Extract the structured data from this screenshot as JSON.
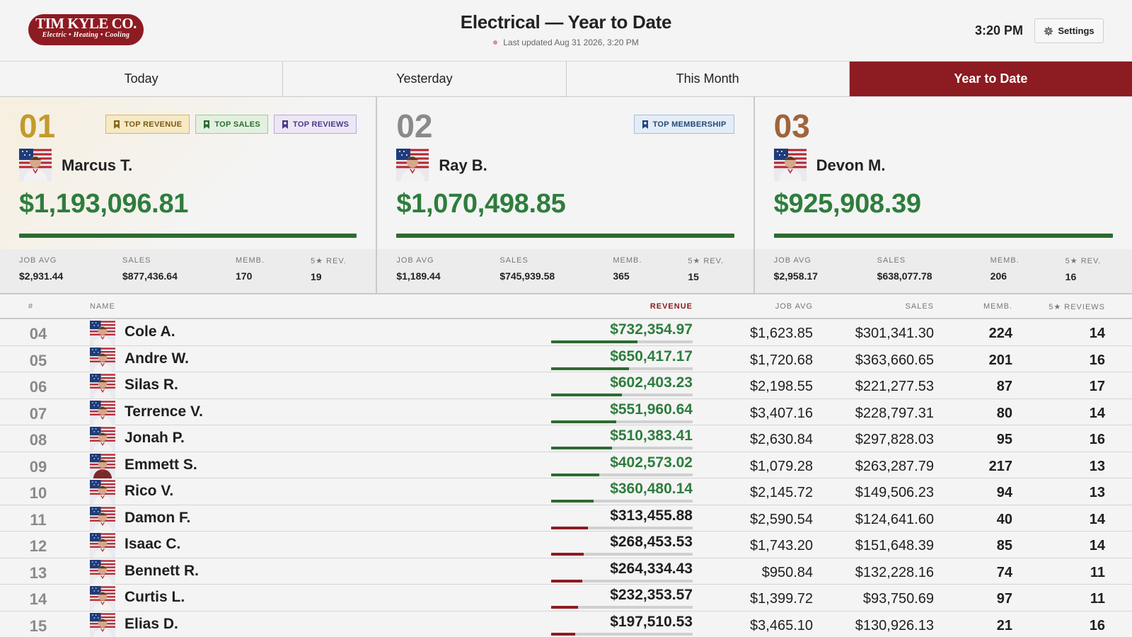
{
  "header": {
    "logo_name": "TIM KYLE CO.",
    "logo_tagline": "Electric • Heating • Cooling",
    "title": "Electrical — Year to Date",
    "last_updated": "Last updated Aug 31 2026, 3:20 PM",
    "time": "3:20 PM",
    "settings_label": "Settings"
  },
  "colors": {
    "brand_red": "#8d1b22",
    "money_green": "#2e7d3d",
    "gold": "#c49a2c",
    "silver": "#8a8a8a",
    "bronze": "#a0643b"
  },
  "tabs": [
    {
      "label": "Today",
      "active": false
    },
    {
      "label": "Yesterday",
      "active": false
    },
    {
      "label": "This Month",
      "active": false
    },
    {
      "label": "Year to Date",
      "active": true
    }
  ],
  "stat_labels": {
    "job_avg": "JOB AVG",
    "sales": "SALES",
    "memb": "MEMB.",
    "rev": "5★ REV."
  },
  "podium": [
    {
      "rank": "01",
      "name": "Marcus T.",
      "revenue": "$1,193,096.81",
      "badges": [
        "TOP REVENUE",
        "TOP SALES",
        "TOP REVIEWS"
      ],
      "job_avg": "$2,931.44",
      "sales": "$877,436.64",
      "memb": "170",
      "rev": "19"
    },
    {
      "rank": "02",
      "name": "Ray B.",
      "revenue": "$1,070,498.85",
      "badges": [
        "TOP MEMBERSHIP"
      ],
      "job_avg": "$1,189.44",
      "sales": "$745,939.58",
      "memb": "365",
      "rev": "15"
    },
    {
      "rank": "03",
      "name": "Devon M.",
      "revenue": "$925,908.39",
      "badges": [],
      "job_avg": "$2,958.17",
      "sales": "$638,077.78",
      "memb": "206",
      "rev": "16"
    }
  ],
  "table": {
    "headers": {
      "rank": "#",
      "name": "NAME",
      "revenue": "REVENUE",
      "job_avg": "JOB AVG",
      "sales": "SALES",
      "memb": "MEMB.",
      "reviews": "5★ REVIEWS"
    },
    "rows": [
      {
        "rank": "04",
        "name": "Cole A.",
        "revenue": "$732,354.97",
        "bar": 0.61,
        "on_track": true,
        "job_avg": "$1,623.85",
        "sales": "$301,341.30",
        "memb": "224",
        "reviews": "14"
      },
      {
        "rank": "05",
        "name": "Andre W.",
        "revenue": "$650,417.17",
        "bar": 0.55,
        "on_track": true,
        "job_avg": "$1,720.68",
        "sales": "$363,660.65",
        "memb": "201",
        "reviews": "16"
      },
      {
        "rank": "06",
        "name": "Silas R.",
        "revenue": "$602,403.23",
        "bar": 0.5,
        "on_track": true,
        "job_avg": "$2,198.55",
        "sales": "$221,277.53",
        "memb": "87",
        "reviews": "17"
      },
      {
        "rank": "07",
        "name": "Terrence V.",
        "revenue": "$551,960.64",
        "bar": 0.46,
        "on_track": true,
        "job_avg": "$3,407.16",
        "sales": "$228,797.31",
        "memb": "80",
        "reviews": "14"
      },
      {
        "rank": "08",
        "name": "Jonah P.",
        "revenue": "$510,383.41",
        "bar": 0.43,
        "on_track": true,
        "job_avg": "$2,630.84",
        "sales": "$297,828.03",
        "memb": "95",
        "reviews": "16"
      },
      {
        "rank": "09",
        "name": "Emmett S.",
        "revenue": "$402,573.02",
        "bar": 0.34,
        "on_track": true,
        "job_avg": "$1,079.28",
        "sales": "$263,287.79",
        "memb": "217",
        "reviews": "13"
      },
      {
        "rank": "10",
        "name": "Rico V.",
        "revenue": "$360,480.14",
        "bar": 0.3,
        "on_track": true,
        "job_avg": "$2,145.72",
        "sales": "$149,506.23",
        "memb": "94",
        "reviews": "13"
      },
      {
        "rank": "11",
        "name": "Damon F.",
        "revenue": "$313,455.88",
        "bar": 0.26,
        "on_track": false,
        "job_avg": "$2,590.54",
        "sales": "$124,641.60",
        "memb": "40",
        "reviews": "14"
      },
      {
        "rank": "12",
        "name": "Isaac C.",
        "revenue": "$268,453.53",
        "bar": 0.23,
        "on_track": false,
        "job_avg": "$1,743.20",
        "sales": "$151,648.39",
        "memb": "85",
        "reviews": "14"
      },
      {
        "rank": "13",
        "name": "Bennett R.",
        "revenue": "$264,334.43",
        "bar": 0.22,
        "on_track": false,
        "job_avg": "$950.84",
        "sales": "$132,228.16",
        "memb": "74",
        "reviews": "11"
      },
      {
        "rank": "14",
        "name": "Curtis L.",
        "revenue": "$232,353.57",
        "bar": 0.19,
        "on_track": false,
        "job_avg": "$1,399.72",
        "sales": "$93,750.69",
        "memb": "97",
        "reviews": "11"
      },
      {
        "rank": "15",
        "name": "Elias D.",
        "revenue": "$197,510.53",
        "bar": 0.17,
        "on_track": false,
        "job_avg": "$3,465.10",
        "sales": "$130,926.13",
        "memb": "21",
        "reviews": "16"
      }
    ]
  }
}
